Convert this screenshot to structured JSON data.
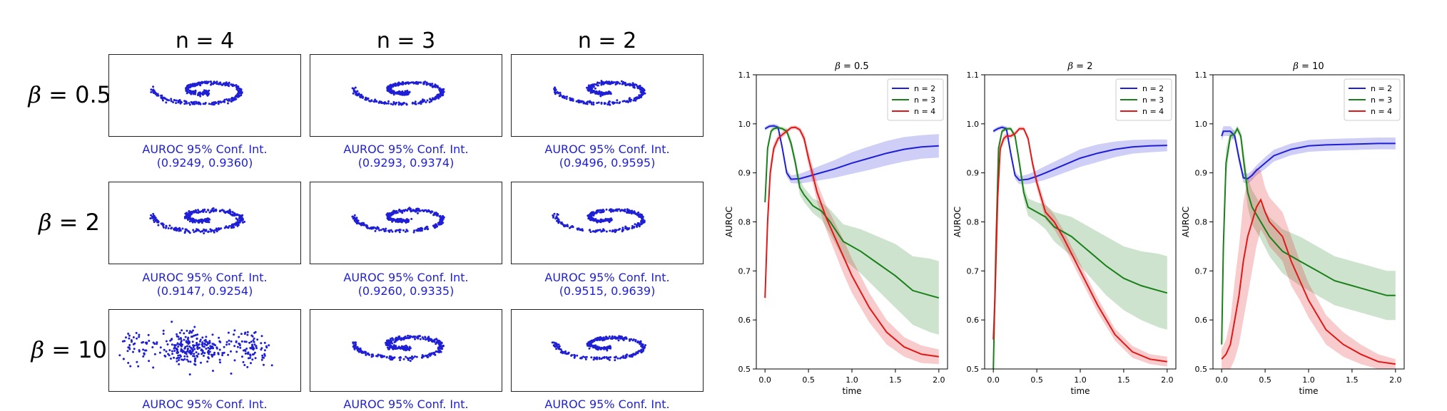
{
  "left_panel": {
    "column_titles": [
      "n = 4",
      "n = 3",
      "n = 2"
    ],
    "rows": [
      {
        "beta_symbol": "β",
        "beta_value": "= 0.5",
        "captions": [
          {
            "line1": "AUROC 95% Conf. Int.",
            "line2": "(0.9249, 0.9360)"
          },
          {
            "line1": "AUROC 95% Conf. Int.",
            "line2": "(0.9293, 0.9374)"
          },
          {
            "line1": "AUROC 95% Conf. Int.",
            "line2": "(0.9496, 0.9595)"
          }
        ]
      },
      {
        "beta_symbol": "β",
        "beta_value": "= 2",
        "captions": [
          {
            "line1": "AUROC 95% Conf. Int.",
            "line2": "(0.9147, 0.9254)"
          },
          {
            "line1": "AUROC 95% Conf. Int.",
            "line2": "(0.9260, 0.9335)"
          },
          {
            "line1": "AUROC 95% Conf. Int.",
            "line2": "(0.9515, 0.9639)"
          }
        ]
      },
      {
        "beta_symbol": "β",
        "beta_value": "= 10",
        "captions": [
          {
            "line1": "AUROC 95% Conf. Int.",
            "line2": ""
          },
          {
            "line1": "AUROC 95% Conf. Int.",
            "line2": ""
          },
          {
            "line1": "AUROC 95% Conf. Int.",
            "line2": ""
          }
        ]
      }
    ],
    "point_color": "#1f1fd6"
  },
  "chart_data": [
    {
      "type": "line",
      "title_symbol": "β",
      "title": "= 0.5",
      "xlabel": "time",
      "ylabel": "AUROC",
      "xlim": [
        -0.1,
        2.1
      ],
      "ylim": [
        0.5,
        1.1
      ],
      "xticks": [
        "0.0",
        "0.5",
        "1.0",
        "1.5",
        "2.0"
      ],
      "yticks": [
        "0.5",
        "0.6",
        "0.7",
        "0.8",
        "0.9",
        "1.0",
        "1.1"
      ],
      "legend": "top-right",
      "series": [
        {
          "name": "n = 2",
          "color": "#1f1fd6",
          "x": [
            0.0,
            0.05,
            0.1,
            0.15,
            0.2,
            0.25,
            0.3,
            0.4,
            0.5,
            0.6,
            0.8,
            1.0,
            1.2,
            1.4,
            1.6,
            1.8,
            2.0
          ],
          "y": [
            0.99,
            0.995,
            0.996,
            0.993,
            0.95,
            0.9,
            0.887,
            0.888,
            0.893,
            0.898,
            0.908,
            0.92,
            0.93,
            0.94,
            0.948,
            0.953,
            0.955
          ],
          "band": [
            0.004,
            0.004,
            0.004,
            0.005,
            0.008,
            0.008,
            0.008,
            0.01,
            0.012,
            0.014,
            0.018,
            0.022,
            0.024,
            0.025,
            0.025,
            0.024,
            0.024
          ]
        },
        {
          "name": "n = 3",
          "color": "#1a801a",
          "x": [
            0.0,
            0.03,
            0.07,
            0.1,
            0.15,
            0.2,
            0.25,
            0.3,
            0.35,
            0.4,
            0.45,
            0.55,
            0.65,
            0.75,
            0.9,
            1.1,
            1.3,
            1.5,
            1.7,
            1.9,
            2.0
          ],
          "y": [
            0.84,
            0.95,
            0.985,
            0.99,
            0.992,
            0.99,
            0.985,
            0.96,
            0.92,
            0.87,
            0.855,
            0.833,
            0.822,
            0.8,
            0.76,
            0.74,
            0.715,
            0.69,
            0.66,
            0.65,
            0.645
          ],
          "band": [
            0.01,
            0.01,
            0.006,
            0.004,
            0.004,
            0.004,
            0.006,
            0.01,
            0.012,
            0.015,
            0.015,
            0.015,
            0.018,
            0.025,
            0.035,
            0.045,
            0.055,
            0.065,
            0.07,
            0.075,
            0.075
          ]
        },
        {
          "name": "n = 4",
          "color": "#e01818",
          "x": [
            0.0,
            0.03,
            0.06,
            0.1,
            0.15,
            0.2,
            0.25,
            0.3,
            0.35,
            0.4,
            0.45,
            0.5,
            0.6,
            0.7,
            0.8,
            0.9,
            1.0,
            1.2,
            1.4,
            1.6,
            1.8,
            2.0
          ],
          "y": [
            0.645,
            0.8,
            0.9,
            0.95,
            0.97,
            0.978,
            0.985,
            0.992,
            0.993,
            0.988,
            0.97,
            0.93,
            0.86,
            0.81,
            0.77,
            0.73,
            0.69,
            0.625,
            0.575,
            0.545,
            0.53,
            0.525
          ],
          "band": [
            0.02,
            0.03,
            0.02,
            0.01,
            0.008,
            0.006,
            0.005,
            0.004,
            0.004,
            0.005,
            0.01,
            0.015,
            0.02,
            0.025,
            0.03,
            0.035,
            0.035,
            0.03,
            0.025,
            0.02,
            0.018,
            0.015
          ]
        }
      ]
    },
    {
      "type": "line",
      "title_symbol": "β",
      "title": "= 2",
      "xlabel": "time",
      "ylabel": "AUROC",
      "xlim": [
        -0.1,
        2.1
      ],
      "ylim": [
        0.5,
        1.1
      ],
      "xticks": [
        "0.0",
        "0.5",
        "1.0",
        "1.5",
        "2.0"
      ],
      "yticks": [
        "0.5",
        "0.6",
        "0.7",
        "0.8",
        "0.9",
        "1.0",
        "1.1"
      ],
      "legend": "top-right",
      "series": [
        {
          "name": "n = 2",
          "color": "#1f1fd6",
          "x": [
            0.0,
            0.05,
            0.1,
            0.15,
            0.2,
            0.25,
            0.3,
            0.4,
            0.5,
            0.6,
            0.8,
            1.0,
            1.2,
            1.4,
            1.6,
            1.8,
            2.0
          ],
          "y": [
            0.985,
            0.99,
            0.993,
            0.99,
            0.94,
            0.895,
            0.885,
            0.887,
            0.893,
            0.9,
            0.915,
            0.93,
            0.94,
            0.948,
            0.953,
            0.955,
            0.956
          ],
          "band": [
            0.004,
            0.004,
            0.004,
            0.005,
            0.008,
            0.008,
            0.008,
            0.01,
            0.012,
            0.014,
            0.016,
            0.018,
            0.018,
            0.016,
            0.014,
            0.013,
            0.012
          ]
        },
        {
          "name": "n = 3",
          "color": "#1a801a",
          "x": [
            0.0,
            0.03,
            0.06,
            0.1,
            0.15,
            0.2,
            0.25,
            0.3,
            0.35,
            0.4,
            0.5,
            0.6,
            0.7,
            0.9,
            1.1,
            1.3,
            1.5,
            1.7,
            1.9,
            2.0
          ],
          "y": [
            0.5,
            0.75,
            0.95,
            0.985,
            0.99,
            0.99,
            0.975,
            0.92,
            0.86,
            0.83,
            0.82,
            0.81,
            0.79,
            0.77,
            0.74,
            0.71,
            0.685,
            0.67,
            0.66,
            0.655
          ],
          "band": [
            0.02,
            0.02,
            0.01,
            0.005,
            0.004,
            0.004,
            0.006,
            0.012,
            0.015,
            0.018,
            0.02,
            0.025,
            0.03,
            0.04,
            0.05,
            0.06,
            0.065,
            0.07,
            0.075,
            0.075
          ]
        },
        {
          "name": "n = 4",
          "color": "#e01818",
          "x": [
            0.0,
            0.02,
            0.05,
            0.08,
            0.12,
            0.15,
            0.2,
            0.25,
            0.3,
            0.35,
            0.4,
            0.45,
            0.5,
            0.6,
            0.7,
            0.8,
            1.0,
            1.2,
            1.4,
            1.6,
            1.8,
            2.0
          ],
          "y": [
            0.56,
            0.65,
            0.85,
            0.95,
            0.97,
            0.975,
            0.975,
            0.98,
            0.99,
            0.99,
            0.97,
            0.92,
            0.88,
            0.82,
            0.8,
            0.77,
            0.7,
            0.63,
            0.57,
            0.535,
            0.52,
            0.515
          ],
          "band": [
            0.02,
            0.02,
            0.02,
            0.01,
            0.008,
            0.006,
            0.005,
            0.005,
            0.004,
            0.004,
            0.006,
            0.01,
            0.012,
            0.015,
            0.015,
            0.015,
            0.015,
            0.015,
            0.012,
            0.012,
            0.01,
            0.01
          ]
        }
      ]
    },
    {
      "type": "line",
      "title_symbol": "β",
      "title": "= 10",
      "xlabel": "time",
      "ylabel": "AUROC",
      "xlim": [
        -0.1,
        2.1
      ],
      "ylim": [
        0.5,
        1.1
      ],
      "xticks": [
        "0.0",
        "0.5",
        "1.0",
        "1.5",
        "2.0"
      ],
      "yticks": [
        "0.5",
        "0.6",
        "0.7",
        "0.8",
        "0.9",
        "1.0",
        "1.1"
      ],
      "legend": "top-right",
      "series": [
        {
          "name": "n = 2",
          "color": "#1f1fd6",
          "x": [
            0.0,
            0.02,
            0.05,
            0.1,
            0.15,
            0.2,
            0.25,
            0.3,
            0.35,
            0.4,
            0.5,
            0.6,
            0.8,
            1.0,
            1.2,
            1.4,
            1.6,
            1.8,
            2.0
          ],
          "y": [
            0.975,
            0.985,
            0.985,
            0.985,
            0.975,
            0.93,
            0.89,
            0.888,
            0.895,
            0.905,
            0.92,
            0.935,
            0.948,
            0.955,
            0.957,
            0.958,
            0.959,
            0.96,
            0.96
          ],
          "band": [
            0.01,
            0.01,
            0.01,
            0.01,
            0.01,
            0.01,
            0.01,
            0.01,
            0.01,
            0.01,
            0.012,
            0.012,
            0.012,
            0.012,
            0.012,
            0.012,
            0.012,
            0.012,
            0.012
          ]
        },
        {
          "name": "n = 3",
          "color": "#1a801a",
          "x": [
            0.0,
            0.02,
            0.05,
            0.1,
            0.15,
            0.18,
            0.22,
            0.25,
            0.3,
            0.35,
            0.45,
            0.55,
            0.7,
            0.9,
            1.1,
            1.3,
            1.5,
            1.7,
            1.9,
            2.0
          ],
          "y": [
            0.55,
            0.75,
            0.92,
            0.975,
            0.98,
            0.99,
            0.975,
            0.93,
            0.86,
            0.83,
            0.8,
            0.77,
            0.74,
            0.72,
            0.7,
            0.68,
            0.67,
            0.66,
            0.65,
            0.65
          ],
          "band": [
            0.05,
            0.05,
            0.03,
            0.01,
            0.008,
            0.006,
            0.01,
            0.02,
            0.03,
            0.035,
            0.035,
            0.04,
            0.045,
            0.05,
            0.05,
            0.05,
            0.05,
            0.05,
            0.05,
            0.05
          ]
        },
        {
          "name": "n = 4",
          "color": "#e01818",
          "x": [
            0.0,
            0.05,
            0.1,
            0.15,
            0.2,
            0.25,
            0.3,
            0.35,
            0.4,
            0.45,
            0.5,
            0.55,
            0.6,
            0.7,
            0.8,
            0.9,
            1.0,
            1.2,
            1.4,
            1.6,
            1.8,
            2.0
          ],
          "y": [
            0.52,
            0.53,
            0.55,
            0.6,
            0.65,
            0.72,
            0.77,
            0.8,
            0.83,
            0.845,
            0.82,
            0.8,
            0.79,
            0.77,
            0.72,
            0.68,
            0.64,
            0.58,
            0.55,
            0.53,
            0.515,
            0.51
          ],
          "band": [
            0.02,
            0.03,
            0.05,
            0.08,
            0.1,
            0.12,
            0.12,
            0.1,
            0.08,
            0.06,
            0.05,
            0.05,
            0.05,
            0.05,
            0.05,
            0.04,
            0.035,
            0.03,
            0.025,
            0.02,
            0.015,
            0.01
          ]
        }
      ]
    }
  ]
}
